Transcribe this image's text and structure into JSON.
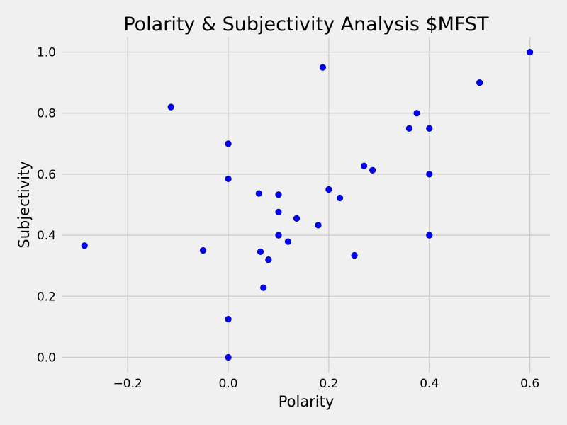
{
  "chart_data": {
    "type": "scatter",
    "title": "Polarity & Subjectivity Analysis $MFST",
    "xlabel": "Polarity",
    "ylabel": "Subjectivity",
    "xlim": [
      -0.33,
      0.64
    ],
    "ylim": [
      -0.05,
      1.05
    ],
    "xticks": [
      -0.2,
      0.0,
      0.2,
      0.4,
      0.6
    ],
    "xtick_labels": [
      "−0.2",
      "0.0",
      "0.2",
      "0.4",
      "0.6"
    ],
    "yticks": [
      0.0,
      0.2,
      0.4,
      0.6,
      0.8,
      1.0
    ],
    "ytick_labels": [
      "0.0",
      "0.2",
      "0.4",
      "0.6",
      "0.8",
      "1.0"
    ],
    "grid": true,
    "marker_color": "#0000ff",
    "points": [
      {
        "x": 0.6,
        "y": 1.0
      },
      {
        "x": 0.5,
        "y": 0.9
      },
      {
        "x": 0.188,
        "y": 0.95
      },
      {
        "x": -0.114,
        "y": 0.82
      },
      {
        "x": 0.375,
        "y": 0.8
      },
      {
        "x": 0.36,
        "y": 0.75
      },
      {
        "x": 0.4,
        "y": 0.75
      },
      {
        "x": 0.0,
        "y": 0.7
      },
      {
        "x": 0.27,
        "y": 0.627
      },
      {
        "x": 0.287,
        "y": 0.613
      },
      {
        "x": 0.4,
        "y": 0.6
      },
      {
        "x": 0.0,
        "y": 0.585
      },
      {
        "x": 0.2,
        "y": 0.55
      },
      {
        "x": 0.061,
        "y": 0.537
      },
      {
        "x": 0.1,
        "y": 0.533
      },
      {
        "x": 0.222,
        "y": 0.522
      },
      {
        "x": 0.1,
        "y": 0.476
      },
      {
        "x": 0.136,
        "y": 0.455
      },
      {
        "x": 0.179,
        "y": 0.433
      },
      {
        "x": 0.1,
        "y": 0.4
      },
      {
        "x": 0.4,
        "y": 0.4
      },
      {
        "x": 0.119,
        "y": 0.379
      },
      {
        "x": -0.286,
        "y": 0.366
      },
      {
        "x": -0.05,
        "y": 0.35
      },
      {
        "x": 0.064,
        "y": 0.346
      },
      {
        "x": 0.251,
        "y": 0.334
      },
      {
        "x": 0.08,
        "y": 0.32
      },
      {
        "x": 0.07,
        "y": 0.228
      },
      {
        "x": 0.0,
        "y": 0.125
      },
      {
        "x": 0.0,
        "y": 0.0
      }
    ]
  }
}
